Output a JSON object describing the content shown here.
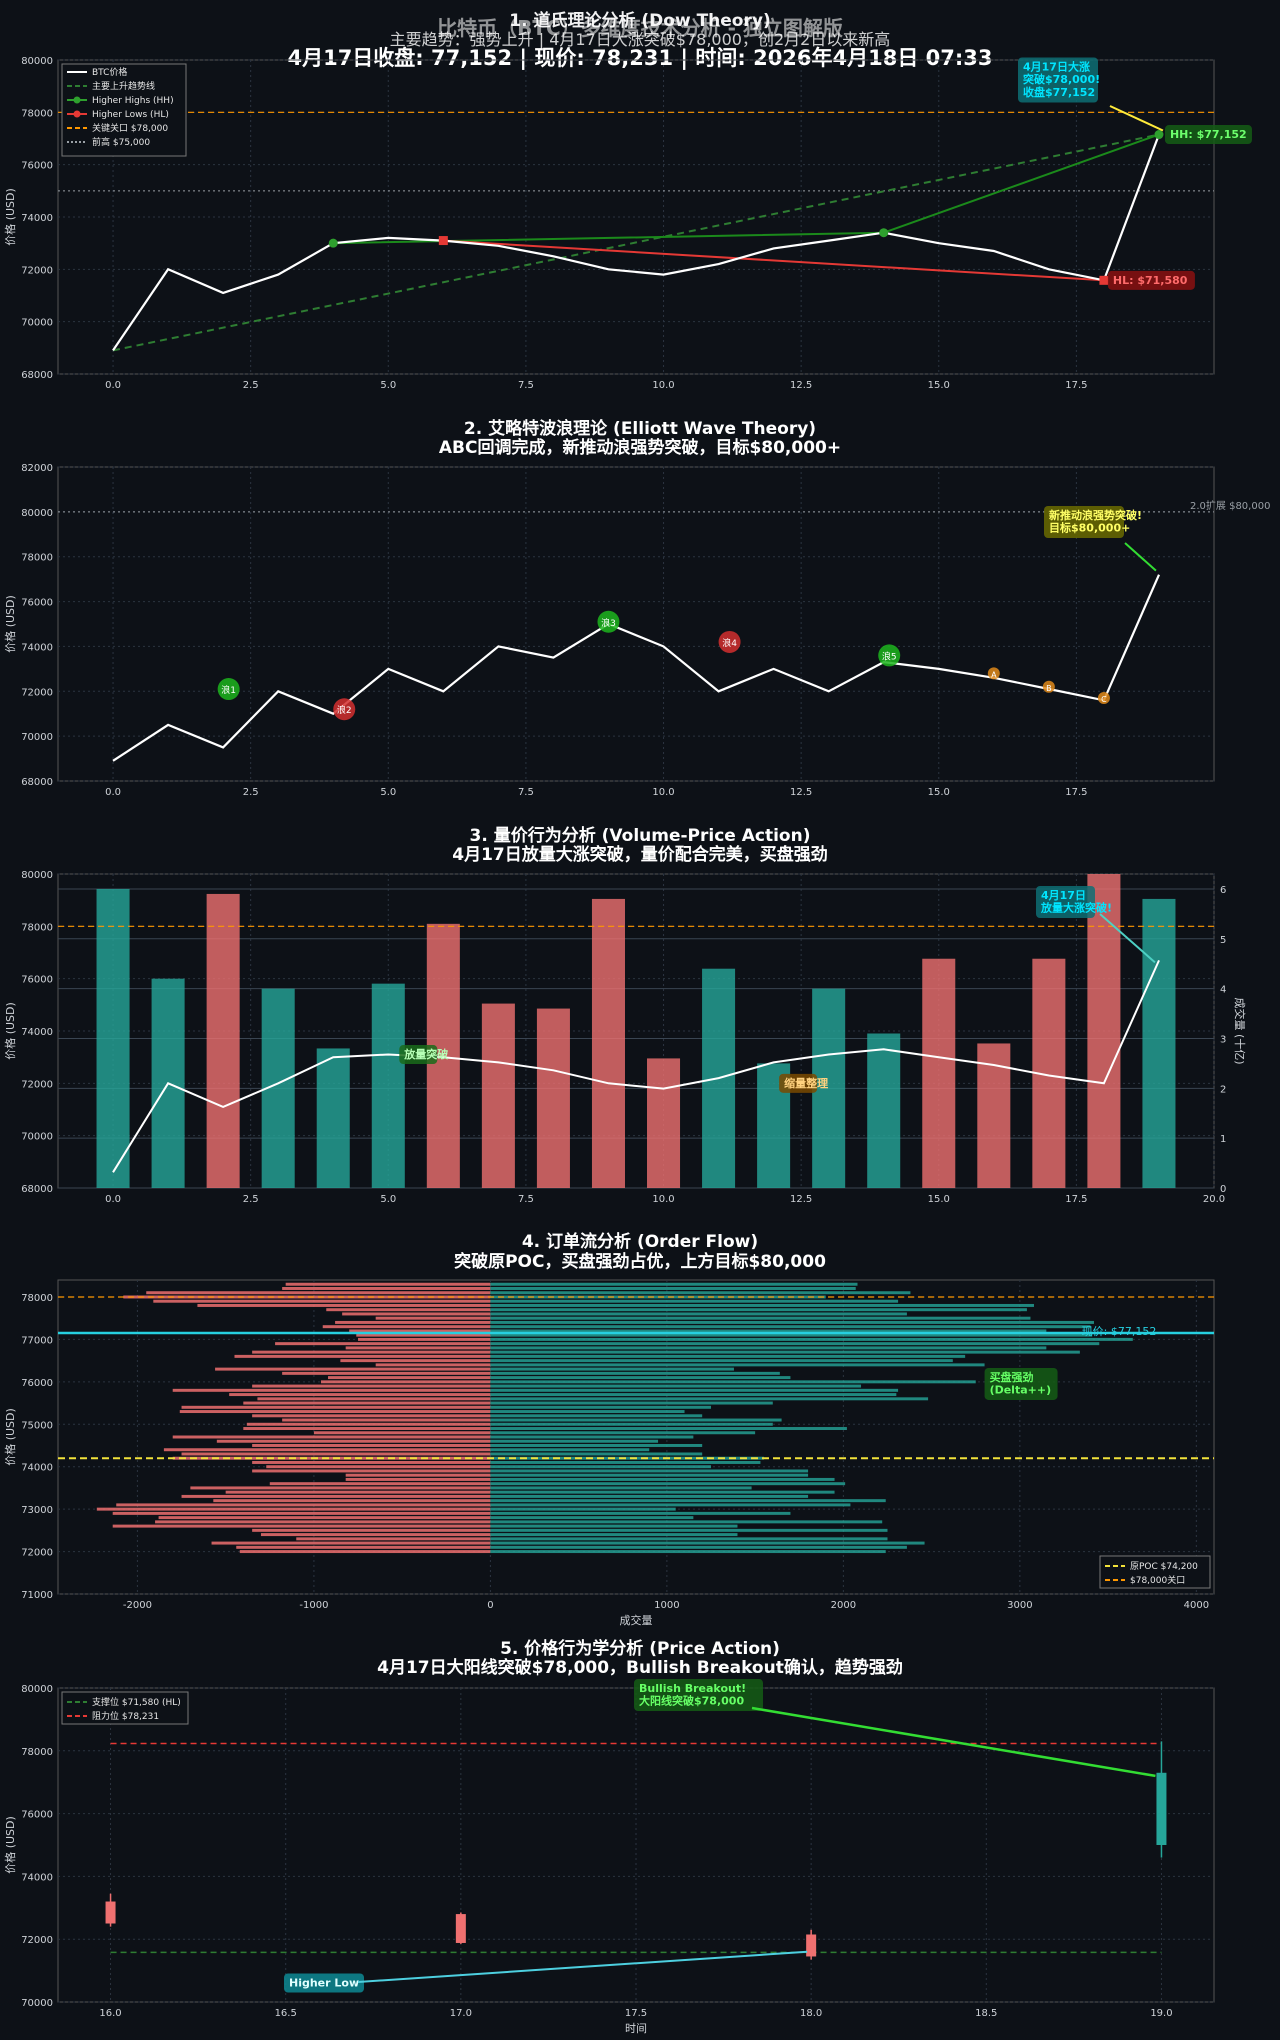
{
  "header": {
    "line1": "1. 道氏理论分析 (Dow Theory)",
    "line1b": "比特币（BTC）多维度技术分析 - 独立图解版",
    "line2": "主要趋势：强势上升 | 4月17日大涨突破$78,000，创2月2日以来新高",
    "line3": "4月17日收盘: 77,152 | 现价: 78,231 | 时间: 2026年4月18日 07:33"
  },
  "colors": {
    "bg": "#0d1117",
    "white": "#ffffff",
    "green": "#00c853",
    "red": "#e53935",
    "orange": "#ff9800",
    "teal": "#26a69a",
    "cyan": "#00e5ff",
    "yellow": "#ffeb3b",
    "bear": "#ef7070"
  },
  "chart_data": [
    {
      "id": "dow",
      "type": "line",
      "title": "1. 道氏理论分析 (Dow Theory)",
      "ylabel": "价格 (USD)",
      "xlim": [
        -1,
        20
      ],
      "ylim": [
        68000,
        80000
      ],
      "xticks": [
        0,
        2.5,
        5,
        7.5,
        10,
        12.5,
        15,
        17.5
      ],
      "xtick_labels": [
        "0.0",
        "2.5",
        "5.0",
        "7.5",
        "10.0",
        "12.5",
        "15.0",
        "17.5"
      ],
      "yticks": [
        68000,
        70000,
        72000,
        74000,
        76000,
        78000,
        80000
      ],
      "ytick_labels": [
        "68000",
        "70000",
        "72000",
        "74000",
        "76000",
        "78000",
        "80000"
      ],
      "series": [
        {
          "name": "BTC价格",
          "x": [
            0,
            1,
            2,
            3,
            4,
            5,
            6,
            7,
            8,
            9,
            10,
            11,
            12,
            13,
            14,
            15,
            16,
            17,
            18,
            19
          ],
          "values": [
            68900,
            72000,
            71100,
            71800,
            73000,
            73200,
            73100,
            72900,
            72500,
            72000,
            71800,
            72200,
            72800,
            73100,
            73400,
            73000,
            72700,
            72000,
            71580,
            77152
          ]
        },
        {
          "name": "主要上升趋势线",
          "x": [
            0,
            19
          ],
          "values": [
            68900,
            77152
          ]
        },
        {
          "name": "Higher Highs (HH)",
          "x": [
            4,
            14,
            19
          ],
          "values": [
            73000,
            73400,
            77152
          ]
        },
        {
          "name": "Higher Lows (HL)",
          "x": [
            6,
            18
          ],
          "values": [
            73100,
            71580
          ]
        },
        {
          "name": "关键关口 $78,000",
          "value": 78000
        },
        {
          "name": "前高 $75,000",
          "value": 75000
        }
      ],
      "legend": [
        "BTC价格",
        "主要上升趋势线",
        "Higher Highs (HH)",
        "Higher Lows (HL)",
        "关键关口 $78,000",
        "前高 $75,000"
      ],
      "annotations": [
        {
          "text": "4月17日大涨\n突破$78,000!\n收盘$77,152",
          "x": 19,
          "y": 77152
        },
        {
          "text": "HH: $77,152",
          "x": 19,
          "y": 77152
        },
        {
          "text": "HL: $71,580",
          "x": 18,
          "y": 71580
        }
      ]
    },
    {
      "id": "elliott",
      "type": "line",
      "title": "2. 艾略特波浪理论 (Elliott Wave Theory)",
      "subtitle": "ABC回调完成，新推动浪强势突破，目标$80,000+",
      "ylabel": "价格 (USD)",
      "xlim": [
        -1,
        20
      ],
      "ylim": [
        68000,
        82000
      ],
      "xticks": [
        0,
        2.5,
        5,
        7.5,
        10,
        12.5,
        15,
        17.5
      ],
      "xtick_labels": [
        "0.0",
        "2.5",
        "5.0",
        "7.5",
        "10.0",
        "12.5",
        "15.0",
        "17.5"
      ],
      "yticks": [
        68000,
        70000,
        72000,
        74000,
        76000,
        78000,
        80000,
        82000
      ],
      "ytick_labels": [
        "68000",
        "70000",
        "72000",
        "74000",
        "76000",
        "78000",
        "80000",
        "82000"
      ],
      "series": [
        {
          "name": "BTC价格",
          "x": [
            0,
            1,
            2,
            3,
            4,
            5,
            6,
            7,
            8,
            9,
            10,
            11,
            12,
            13,
            14,
            15,
            16,
            17,
            18,
            19
          ],
          "values": [
            68900,
            70500,
            69500,
            72000,
            71000,
            73000,
            72000,
            74000,
            73500,
            75000,
            74000,
            72000,
            73000,
            72000,
            73300,
            73000,
            72600,
            72100,
            71600,
            77200
          ]
        },
        {
          "name": "2.0扩展 $80,000",
          "value": 80000
        }
      ],
      "waves": [
        {
          "label": "浪1",
          "x": 2.1,
          "y": 72100,
          "color": "green"
        },
        {
          "label": "浪2",
          "x": 4.2,
          "y": 71200,
          "color": "red"
        },
        {
          "label": "浪3",
          "x": 9.0,
          "y": 75100,
          "color": "green"
        },
        {
          "label": "浪4",
          "x": 11.2,
          "y": 74200,
          "color": "red"
        },
        {
          "label": "浪5",
          "x": 14.1,
          "y": 73600,
          "color": "green"
        },
        {
          "label": "A",
          "x": 16.0,
          "y": 72800,
          "color": "orange"
        },
        {
          "label": "B",
          "x": 17.0,
          "y": 72200,
          "color": "orange"
        },
        {
          "label": "C",
          "x": 18.0,
          "y": 71700,
          "color": "orange"
        }
      ],
      "annotations": [
        {
          "text": "新推动浪强势突破!\n目标$80,000+",
          "x": 19,
          "y": 77200
        },
        {
          "text": "2.0扩展 $80,000",
          "x": 20,
          "y": 80000
        }
      ]
    },
    {
      "id": "volume",
      "type": "bar",
      "title": "3. 量价行为分析 (Volume-Price Action)",
      "subtitle": "4月17日放量大涨突破，量价配合完美，买盘强劲",
      "ylabel": "价格 (USD)",
      "y2label": "成交量 (十亿)",
      "xlim": [
        -1,
        20
      ],
      "ylim": [
        68000,
        80000
      ],
      "y2lim": [
        0,
        6.3
      ],
      "xticks": [
        0,
        2.5,
        5,
        7.5,
        10,
        12.5,
        15,
        17.5,
        20
      ],
      "xtick_labels": [
        "0.0",
        "2.5",
        "5.0",
        "7.5",
        "10.0",
        "12.5",
        "15.0",
        "17.5",
        "20.0"
      ],
      "yticks": [
        68000,
        70000,
        72000,
        74000,
        76000,
        78000,
        80000
      ],
      "ytick_labels": [
        "68000",
        "70000",
        "72000",
        "74000",
        "76000",
        "78000",
        "80000"
      ],
      "y2ticks": [
        0,
        1,
        2,
        3,
        4,
        5,
        6
      ],
      "y2tick_labels": [
        "0",
        "1",
        "2",
        "3",
        "4",
        "5",
        "6"
      ],
      "x": [
        0,
        1,
        2,
        3,
        4,
        5,
        6,
        7,
        8,
        9,
        10,
        11,
        12,
        13,
        14,
        15,
        16,
        17,
        18,
        19
      ],
      "volume": [
        6.0,
        4.2,
        5.9,
        4.0,
        2.8,
        4.1,
        5.3,
        3.7,
        3.6,
        5.8,
        2.6,
        4.4,
        2.5,
        4.0,
        3.1,
        4.6,
        2.9,
        4.6,
        6.5,
        5.8
      ],
      "direction": [
        "up",
        "up",
        "down",
        "up",
        "up",
        "up",
        "down",
        "down",
        "down",
        "down",
        "down",
        "up",
        "up",
        "up",
        "up",
        "down",
        "down",
        "down",
        "down",
        "up"
      ],
      "price": [
        68600,
        72000,
        71100,
        72000,
        73000,
        73100,
        73000,
        72800,
        72500,
        72000,
        71800,
        72200,
        72800,
        73100,
        73300,
        73000,
        72700,
        72300,
        72000,
        76700
      ],
      "key_level": 78000,
      "annotations": [
        {
          "text": "4月17日\n放量大涨突破!",
          "x": 19,
          "y": 76700
        },
        {
          "text": "放量突破",
          "x": 5.3,
          "y": 73100
        },
        {
          "text": "缩量整理",
          "x": 12.3,
          "y": 72000
        }
      ]
    },
    {
      "id": "orderflow",
      "type": "bar",
      "title": "4. 订单流分析 (Order Flow)",
      "subtitle": "突破原POC，买盘强劲占优，上方目标$80,000",
      "xlabel": "成交量",
      "ylabel": "价格 (USD)",
      "xlim": [
        -2450,
        4100
      ],
      "ylim": [
        71000,
        78400
      ],
      "xticks": [
        -2000,
        -1000,
        0,
        1000,
        2000,
        3000,
        4000
      ],
      "xtick_labels": [
        "-2000",
        "-1000",
        "0",
        "1000",
        "2000",
        "3000",
        "4000"
      ],
      "yticks": [
        71000,
        72000,
        73000,
        74000,
        75000,
        76000,
        77000,
        78000
      ],
      "ytick_labels": [
        "71000",
        "72000",
        "73000",
        "74000",
        "75000",
        "76000",
        "77000",
        "78000"
      ],
      "levels": [
        72000,
        72100,
        72200,
        72300,
        72400,
        72500,
        72600,
        72700,
        72800,
        72900,
        73000,
        73100,
        73200,
        73300,
        73400,
        73500,
        73600,
        73700,
        73800,
        73900,
        74000,
        74100,
        74200,
        74300,
        74400,
        74500,
        74600,
        74700,
        74800,
        74900,
        75000,
        75100,
        75200,
        75300,
        75400,
        75500,
        75600,
        75700,
        75800,
        75900,
        76000,
        76100,
        76200,
        76300,
        76400,
        76500,
        76600,
        76700,
        76800,
        76900,
        77000,
        77100,
        77200,
        77300,
        77400,
        77500,
        77600,
        77700,
        77800,
        77900,
        78000,
        78100,
        78200,
        78300
      ],
      "sell": [
        1420,
        1440,
        1580,
        1100,
        1300,
        1350,
        2140,
        1900,
        1880,
        2140,
        2230,
        2120,
        1570,
        1750,
        1500,
        1700,
        1250,
        820,
        820,
        1350,
        1270,
        1350,
        1800,
        1750,
        1850,
        1350,
        1550,
        1800,
        1000,
        1400,
        1380,
        1180,
        1350,
        1760,
        1750,
        1400,
        1320,
        1480,
        1800,
        1350,
        960,
        920,
        1180,
        1560,
        650,
        850,
        1450,
        1350,
        820,
        1220,
        750,
        760,
        800,
        950,
        880,
        650,
        840,
        930,
        1660,
        1910,
        2080,
        1950,
        1180,
        1160
      ],
      "buy": [
        2240,
        2360,
        2460,
        2250,
        1400,
        2250,
        1400,
        2220,
        1150,
        1700,
        1050,
        2040,
        2240,
        1800,
        1950,
        1480,
        2010,
        1950,
        1800,
        1800,
        1250,
        1530,
        1550,
        1200,
        900,
        1200,
        950,
        1150,
        1500,
        2020,
        1600,
        1650,
        1200,
        1100,
        1250,
        1600,
        2480,
        2300,
        2310,
        2100,
        2750,
        1700,
        1640,
        1380,
        2800,
        2620,
        2690,
        3340,
        3150,
        3450,
        3640,
        3410,
        3150,
        3400,
        3420,
        3060,
        2360,
        3040,
        3080,
        2310,
        1900,
        2380,
        2070,
        2080
      ],
      "lines": [
        {
          "name": "原POC $74,200",
          "value": 74200
        },
        {
          "name": "$78,000关口",
          "value": 78000
        },
        {
          "name": "现价: $77,152",
          "value": 77152
        }
      ],
      "legend": [
        "原POC $74,200",
        "$78,000关口"
      ],
      "annotations": [
        {
          "text": "现价: $77,152",
          "x": 3400,
          "y": 77152
        },
        {
          "text": "买盘强劲\n(Delta++)",
          "x": 2850,
          "y": 75950
        }
      ]
    },
    {
      "id": "priceaction",
      "type": "candlestick",
      "title": "5. 价格行为学分析 (Price Action)",
      "subtitle": "4月17日大阳线突破$78,000，Bullish Breakout确认，趋势强劲",
      "xlabel": "时间",
      "ylabel": "价格 (USD)",
      "xlim": [
        15.85,
        19.15
      ],
      "ylim": [
        70000,
        80000
      ],
      "xticks": [
        16,
        16.5,
        17,
        17.5,
        18,
        18.5,
        19
      ],
      "xtick_labels": [
        "16.0",
        "16.5",
        "17.0",
        "17.5",
        "18.0",
        "18.5",
        "19.0"
      ],
      "yticks": [
        70000,
        72000,
        74000,
        76000,
        78000,
        80000
      ],
      "ytick_labels": [
        "70000",
        "72000",
        "74000",
        "76000",
        "78000",
        "80000"
      ],
      "candles": [
        {
          "x": 16,
          "open": 73200,
          "high": 73450,
          "low": 72400,
          "close": 72500
        },
        {
          "x": 17,
          "open": 72800,
          "high": 72850,
          "low": 71850,
          "close": 71880
        },
        {
          "x": 18,
          "open": 72150,
          "high": 72300,
          "low": 71350,
          "close": 71450
        },
        {
          "x": 19,
          "open": 75000,
          "high": 78300,
          "low": 74600,
          "close": 77300
        }
      ],
      "lines": [
        {
          "name": "支撑位 $71,580 (HL)",
          "value": 71580
        },
        {
          "name": "阻力位 $78,231",
          "value": 78231
        }
      ],
      "legend": [
        "支撑位 $71,580 (HL)",
        "阻力位 $78,231"
      ],
      "annotations": [
        {
          "text": "Bullish Breakout!\n大阳线突破$78,000",
          "x": 19,
          "y": 77200
        },
        {
          "text": "Higher Low",
          "x": 18,
          "y": 71600
        }
      ]
    }
  ]
}
